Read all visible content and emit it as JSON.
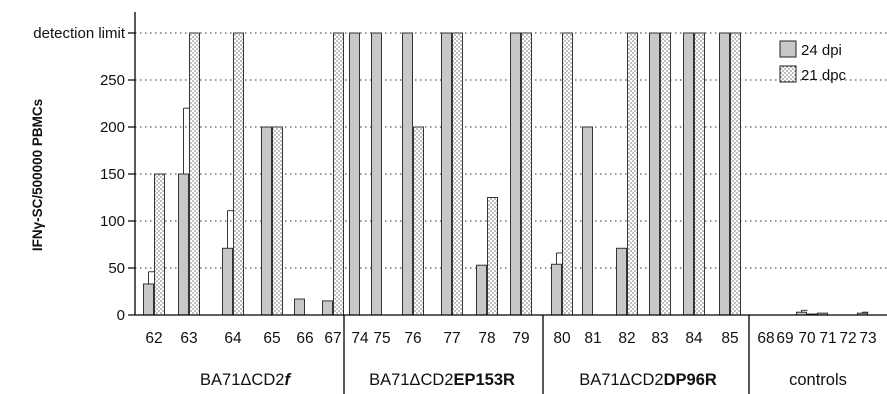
{
  "chart_data": {
    "type": "bar",
    "ylabel": "IFNγ-SC/500000  PBMCs",
    "ylim": [
      0,
      300
    ],
    "yticks": [
      0,
      50,
      100,
      150,
      200,
      250,
      300
    ],
    "ytick_labels": [
      "0",
      "50",
      "100",
      "150",
      "200",
      "250",
      "detection limit"
    ],
    "grid": "dotted horizontal",
    "legend_position": "top-right",
    "series": [
      {
        "name": "24 dpi",
        "fill": "#c8c8c8",
        "pattern": "solid"
      },
      {
        "name": "21 dpc",
        "fill": "#ffffff",
        "pattern": "dotted"
      }
    ],
    "groups": [
      {
        "label_main": "BA71ΔCD2",
        "label_suffix": "f",
        "suffix_style": "bold-italic",
        "animals": [
          {
            "id": "62",
            "dpi": 33,
            "dpi_err": 13,
            "dpc": 150
          },
          {
            "id": "63",
            "dpi": 150,
            "dpi_err": 70,
            "dpc": 300
          },
          {
            "id": "64",
            "dpi": 71,
            "dpi_err": 40,
            "dpc": 300
          },
          {
            "id": "65",
            "dpi": 200,
            "dpc": 200
          },
          {
            "id": "66",
            "dpi": 17,
            "dpc": null
          },
          {
            "id": "67",
            "dpi": 15,
            "dpc": 300
          }
        ]
      },
      {
        "label_main": "BA71ΔCD2",
        "label_suffix": "EP153R",
        "suffix_style": "bold",
        "animals": [
          {
            "id": "74",
            "dpi": 300,
            "dpc": null
          },
          {
            "id": "75",
            "dpi": 300,
            "dpc": null
          },
          {
            "id": "76",
            "dpi": 300,
            "dpc": 200
          },
          {
            "id": "77",
            "dpi": 300,
            "dpc": 300
          },
          {
            "id": "78",
            "dpi": 53,
            "dpc": 125
          },
          {
            "id": "79",
            "dpi": 300,
            "dpc": 300
          }
        ]
      },
      {
        "label_main": "BA71ΔCD2",
        "label_suffix": "DP96R",
        "suffix_style": "bold",
        "animals": [
          {
            "id": "80",
            "dpi": 54,
            "dpi_err": 12,
            "dpc": 300
          },
          {
            "id": "81",
            "dpi": 200,
            "dpc": null
          },
          {
            "id": "82",
            "dpi": 71,
            "dpc": 300
          },
          {
            "id": "83",
            "dpi": 300,
            "dpc": 300
          },
          {
            "id": "84",
            "dpi": 300,
            "dpc": 300
          },
          {
            "id": "85",
            "dpi": 300,
            "dpc": 300
          }
        ]
      },
      {
        "label_main": "controls",
        "label_suffix": "",
        "suffix_style": "none",
        "animals": [
          {
            "id": "68",
            "dpi": 0,
            "dpc": 0
          },
          {
            "id": "69",
            "dpi": 0,
            "dpc": 0
          },
          {
            "id": "70",
            "dpi": 3,
            "dpi_err": 2,
            "dpc": 1
          },
          {
            "id": "71",
            "dpi": 2,
            "dpc": 0
          },
          {
            "id": "72",
            "dpi": 0,
            "dpc": 0
          },
          {
            "id": "73",
            "dpi": 2,
            "dpi_err": 1,
            "dpc": 0
          }
        ]
      }
    ]
  }
}
